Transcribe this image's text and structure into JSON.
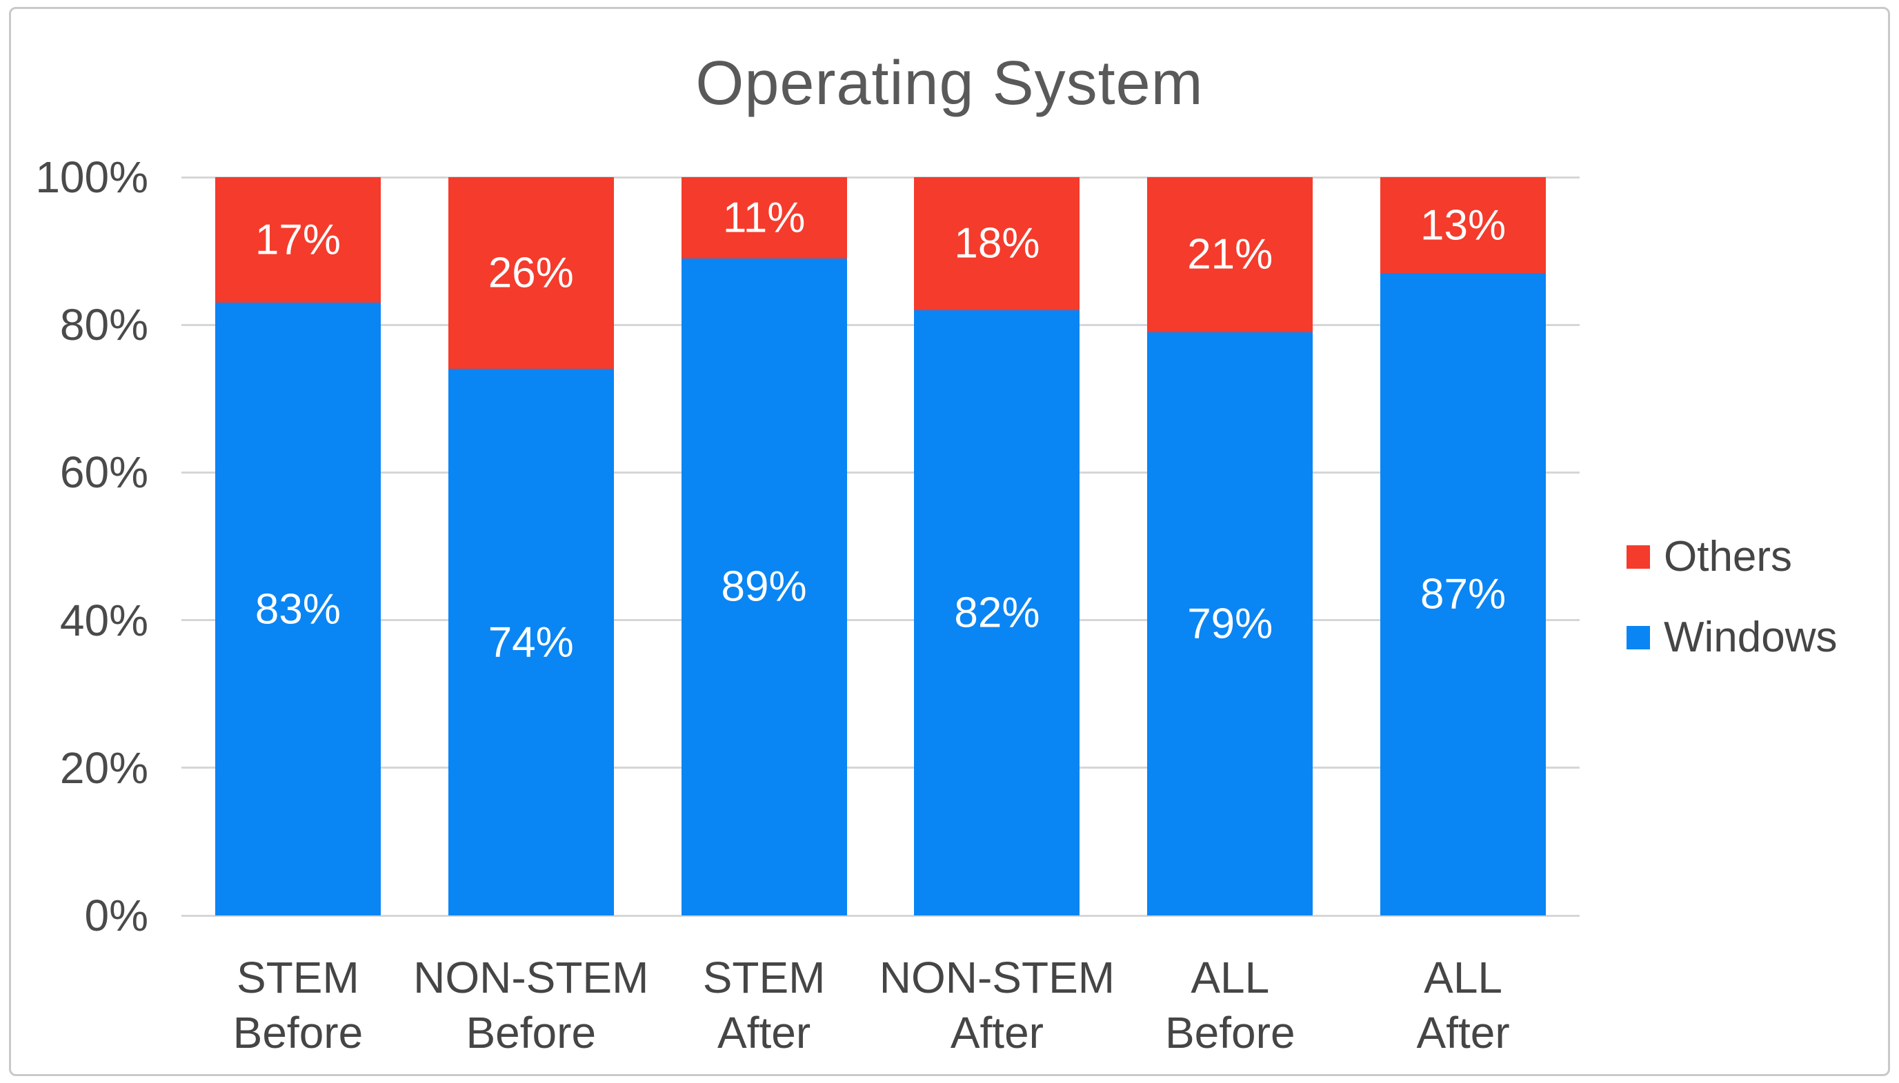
{
  "chart_data": {
    "type": "bar",
    "stacked": true,
    "title": "Operating System",
    "categories": [
      {
        "line1": "STEM",
        "line2": "Before"
      },
      {
        "line1": "NON-STEM",
        "line2": "Before"
      },
      {
        "line1": "STEM",
        "line2": "After"
      },
      {
        "line1": "NON-STEM",
        "line2": "After"
      },
      {
        "line1": "ALL",
        "line2": "Before"
      },
      {
        "line1": "ALL",
        "line2": "After"
      }
    ],
    "series": [
      {
        "name": "Windows",
        "color": "#0a85f4",
        "values": [
          83,
          74,
          89,
          82,
          79,
          87
        ]
      },
      {
        "name": "Others",
        "color": "#f43b2c",
        "values": [
          17,
          26,
          11,
          18,
          21,
          13
        ]
      }
    ],
    "value_suffix": "%",
    "y_ticks": [
      {
        "value": 0,
        "label": "0%"
      },
      {
        "value": 20,
        "label": "20%"
      },
      {
        "value": 40,
        "label": "40%"
      },
      {
        "value": 60,
        "label": "60%"
      },
      {
        "value": 80,
        "label": "80%"
      },
      {
        "value": 100,
        "label": "100%"
      }
    ],
    "ylim": [
      0,
      100
    ],
    "grid": true,
    "xlabel": "",
    "ylabel": "",
    "legend_position": "right",
    "legend_order": [
      "Others",
      "Windows"
    ]
  },
  "colors": {
    "windows_blue": "#0a85f4",
    "others_red": "#f43b2c",
    "gridline": "#d6d6d6",
    "axis_text": "#4a4a4a",
    "title_text": "#595959",
    "data_label_text": "#ffffff",
    "frame_border": "#c9c9c9"
  }
}
